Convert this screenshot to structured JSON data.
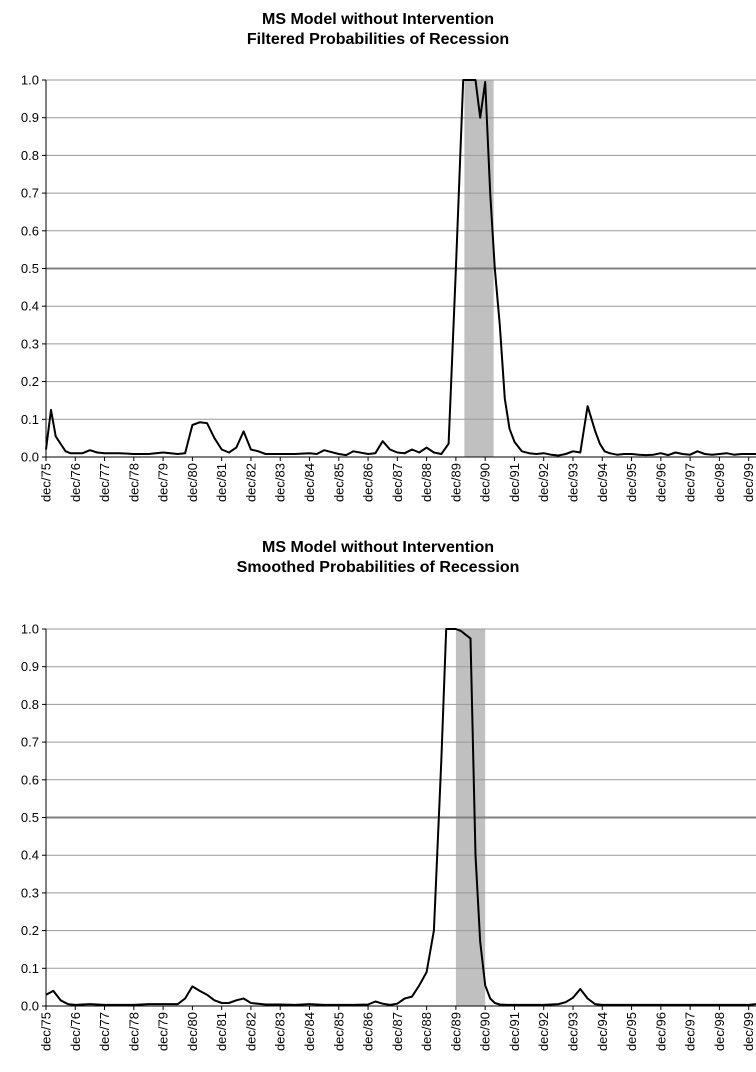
{
  "chart_data": [
    {
      "type": "line",
      "title": "MS Model without Intervention",
      "subtitle": "Filtered Probabilities of Recession",
      "xlabel": "",
      "ylabel": "",
      "ylim": [
        0,
        1
      ],
      "yticks": [
        "0.0",
        "0.1",
        "0.2",
        "0.3",
        "0.4",
        "0.5",
        "0.6",
        "0.7",
        "0.8",
        "0.9",
        "1.0"
      ],
      "xtick_labels": [
        "dec/75",
        "dec/76",
        "dec/77",
        "dec/78",
        "dec/79",
        "dec/80",
        "dec/81",
        "dec/82",
        "dec/83",
        "dec/84",
        "dec/85",
        "dec/86",
        "dec/87",
        "dec/88",
        "dec/89",
        "dec/90",
        "dec/91",
        "dec/92",
        "dec/93",
        "dec/94",
        "dec/95",
        "dec/96",
        "dec/97",
        "dec/98",
        "dec/99"
      ],
      "x_start": "1975.96",
      "x_end": "2000.21",
      "grid": true,
      "legend": "none",
      "reference_line_y": 0.5,
      "shaded_recession": [
        "1990.25",
        "1991.25"
      ],
      "colors": {
        "line": "#000000",
        "shade": "#c0c0c0",
        "grid": "#9a9a9a",
        "ref": "#808080"
      },
      "series": [
        {
          "x": [
            1975.96,
            1976.13,
            1976.29,
            1976.46,
            1976.63,
            1976.79,
            1976.96,
            1977.21,
            1977.46,
            1977.71,
            1977.96,
            1978.46,
            1978.96,
            1979.46,
            1979.96,
            1980.46,
            1980.71,
            1980.96,
            1981.21,
            1981.46,
            1981.71,
            1981.96,
            1982.21,
            1982.46,
            1982.71,
            1982.96,
            1983.21,
            1983.46,
            1983.96,
            1984.46,
            1984.96,
            1985.21,
            1985.46,
            1985.96,
            1986.21,
            1986.46,
            1986.96,
            1987.21,
            1987.46,
            1987.71,
            1987.96,
            1988.21,
            1988.46,
            1988.71,
            1988.96,
            1989.21,
            1989.46,
            1989.71,
            1989.96,
            1990.21,
            1990.46,
            1990.63,
            1990.79,
            1990.96,
            1991.13,
            1991.29,
            1991.46,
            1991.63,
            1991.79,
            1991.96,
            1992.21,
            1992.46,
            1992.71,
            1992.96,
            1993.21,
            1993.46,
            1993.71,
            1993.96,
            1994.21,
            1994.46,
            1994.71,
            1994.88,
            1995.04,
            1995.21,
            1995.46,
            1995.71,
            1995.96,
            1996.21,
            1996.46,
            1996.71,
            1996.96,
            1997.21,
            1997.46,
            1997.71,
            1997.96,
            1998.21,
            1998.46,
            1998.71,
            1998.96,
            1999.21,
            1999.46,
            1999.71,
            1999.96,
            2000.21
          ],
          "y": [
            0.02,
            0.125,
            0.055,
            0.035,
            0.015,
            0.01,
            0.01,
            0.01,
            0.018,
            0.012,
            0.01,
            0.01,
            0.008,
            0.008,
            0.012,
            0.008,
            0.01,
            0.085,
            0.092,
            0.09,
            0.05,
            0.02,
            0.012,
            0.025,
            0.068,
            0.02,
            0.015,
            0.008,
            0.008,
            0.008,
            0.01,
            0.008,
            0.018,
            0.008,
            0.005,
            0.015,
            0.008,
            0.01,
            0.042,
            0.02,
            0.012,
            0.01,
            0.02,
            0.012,
            0.025,
            0.012,
            0.008,
            0.035,
            0.5,
            1.0,
            1.0,
            1.0,
            0.9,
            0.995,
            0.7,
            0.5,
            0.35,
            0.155,
            0.075,
            0.04,
            0.015,
            0.01,
            0.008,
            0.01,
            0.006,
            0.004,
            0.008,
            0.015,
            0.012,
            0.135,
            0.07,
            0.035,
            0.015,
            0.01,
            0.006,
            0.008,
            0.008,
            0.006,
            0.005,
            0.006,
            0.01,
            0.005,
            0.012,
            0.008,
            0.006,
            0.015,
            0.008,
            0.006,
            0.008,
            0.01,
            0.006,
            0.008,
            0.008,
            0.008
          ]
        }
      ]
    },
    {
      "type": "line",
      "title": "MS Model without Intervention",
      "subtitle": "Smoothed Probabilities of Recession",
      "xlabel": "",
      "ylabel": "",
      "ylim": [
        0,
        1
      ],
      "yticks": [
        "0.0",
        "0.1",
        "0.2",
        "0.3",
        "0.4",
        "0.5",
        "0.6",
        "0.7",
        "0.8",
        "0.9",
        "1.0"
      ],
      "xtick_labels": [
        "dec/75",
        "dec/76",
        "dec/77",
        "dec/78",
        "dec/79",
        "dec/80",
        "dec/81",
        "dec/82",
        "dec/83",
        "dec/84",
        "dec/85",
        "dec/86",
        "dec/87",
        "dec/88",
        "dec/89",
        "dec/90",
        "dec/91",
        "dec/92",
        "dec/93",
        "dec/94",
        "dec/95",
        "dec/96",
        "dec/97",
        "dec/98",
        "dec/99"
      ],
      "x_start": "1975.96",
      "x_end": "2000.21",
      "grid": true,
      "legend": "none",
      "reference_line_y": 0.5,
      "shaded_recession": [
        "1989.96",
        "1990.96"
      ],
      "colors": {
        "line": "#000000",
        "shade": "#c0c0c0",
        "grid": "#9a9a9a",
        "ref": "#808080"
      },
      "series": [
        {
          "x": [
            1975.96,
            1976.21,
            1976.46,
            1976.71,
            1976.96,
            1977.46,
            1977.96,
            1978.46,
            1978.96,
            1979.46,
            1979.96,
            1980.46,
            1980.71,
            1980.96,
            1981.21,
            1981.46,
            1981.71,
            1981.96,
            1982.21,
            1982.46,
            1982.71,
            1982.96,
            1983.46,
            1983.96,
            1984.46,
            1984.96,
            1985.46,
            1985.96,
            1986.46,
            1986.96,
            1987.21,
            1987.46,
            1987.71,
            1987.96,
            1988.21,
            1988.46,
            1988.71,
            1988.96,
            1989.21,
            1989.46,
            1989.63,
            1989.79,
            1989.96,
            1990.13,
            1990.29,
            1990.46,
            1990.63,
            1990.79,
            1990.96,
            1991.13,
            1991.29,
            1991.46,
            1991.71,
            1991.96,
            1992.21,
            1992.46,
            1992.96,
            1993.46,
            1993.71,
            1993.96,
            1994.21,
            1994.46,
            1994.71,
            1994.96,
            1995.21,
            1995.46,
            1995.96,
            1996.46,
            1996.96,
            1997.46,
            1997.96,
            1998.46,
            1998.96,
            1999.46,
            1999.96,
            2000.21
          ],
          "y": [
            0.03,
            0.04,
            0.015,
            0.005,
            0.003,
            0.005,
            0.003,
            0.003,
            0.003,
            0.005,
            0.005,
            0.005,
            0.02,
            0.052,
            0.04,
            0.03,
            0.015,
            0.008,
            0.008,
            0.015,
            0.02,
            0.008,
            0.004,
            0.004,
            0.003,
            0.005,
            0.003,
            0.003,
            0.003,
            0.004,
            0.012,
            0.006,
            0.003,
            0.006,
            0.02,
            0.025,
            0.055,
            0.09,
            0.2,
            0.65,
            1.0,
            1.0,
            1.0,
            0.995,
            0.985,
            0.975,
            0.4,
            0.17,
            0.055,
            0.02,
            0.008,
            0.004,
            0.003,
            0.003,
            0.003,
            0.003,
            0.003,
            0.005,
            0.01,
            0.022,
            0.045,
            0.02,
            0.005,
            0.003,
            0.003,
            0.003,
            0.003,
            0.003,
            0.003,
            0.003,
            0.003,
            0.003,
            0.003,
            0.003,
            0.003,
            0.005
          ]
        }
      ]
    }
  ]
}
